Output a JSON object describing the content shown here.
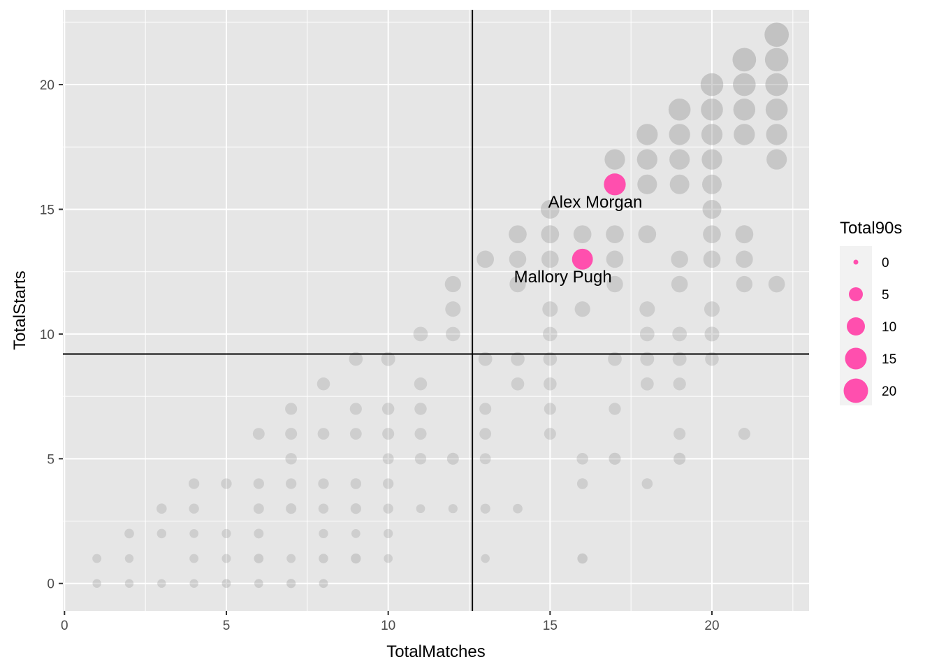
{
  "chart_data": {
    "type": "scatter",
    "xlabel": "TotalMatches",
    "ylabel": "TotalStarts",
    "xlim": [
      -0.05,
      23
    ],
    "ylim": [
      -1.1,
      23
    ],
    "x_ticks": [
      0,
      5,
      10,
      15,
      20
    ],
    "y_ticks": [
      0,
      5,
      10,
      15,
      20
    ],
    "x_tick_labels": [
      "0",
      "5",
      "10",
      "15",
      "20"
    ],
    "y_tick_labels": [
      "0",
      "5",
      "10",
      "15",
      "20"
    ],
    "grid": true,
    "reference_lines": {
      "x": 12.6,
      "y": 9.2
    },
    "legend": {
      "title": "Total90s",
      "position": "right",
      "entries": [
        {
          "label": "0",
          "value": 0
        },
        {
          "label": "5",
          "value": 5
        },
        {
          "label": "10",
          "value": 10
        },
        {
          "label": "15",
          "value": 15
        },
        {
          "label": "20",
          "value": 20
        }
      ]
    },
    "colors": {
      "highlight": "#ff4fae",
      "background_points": "#999999",
      "panel": "#e6e6e6",
      "grid": "#ffffff",
      "ref_line": "#000000"
    },
    "highlighted": [
      {
        "name": "Alex Morgan",
        "x": 17,
        "y": 16,
        "size": 12
      },
      {
        "name": "Mallory Pugh",
        "x": 16,
        "y": 13,
        "size": 11
      }
    ],
    "points": [
      [
        1,
        0,
        0.3
      ],
      [
        2,
        0,
        0.3
      ],
      [
        3,
        0,
        0.3
      ],
      [
        4,
        0,
        0.3
      ],
      [
        5,
        0,
        0.6
      ],
      [
        6,
        0,
        0.5
      ],
      [
        7,
        0,
        0.8
      ],
      [
        8,
        0,
        0.6
      ],
      [
        1,
        1,
        0.6
      ],
      [
        2,
        1,
        0.3
      ],
      [
        4,
        1,
        0.6
      ],
      [
        5,
        1,
        0.7
      ],
      [
        6,
        1,
        1.2
      ],
      [
        7,
        1,
        0.6
      ],
      [
        8,
        1,
        1.1
      ],
      [
        9,
        1,
        1.6
      ],
      [
        10,
        1,
        0.5
      ],
      [
        13,
        1,
        0.4
      ],
      [
        16,
        1,
        1.8
      ],
      [
        2,
        2,
        1.2
      ],
      [
        3,
        2,
        1.0
      ],
      [
        4,
        2,
        0.5
      ],
      [
        5,
        2,
        0.9
      ],
      [
        6,
        2,
        1.3
      ],
      [
        8,
        2,
        0.9
      ],
      [
        9,
        2,
        0.5
      ],
      [
        10,
        2,
        0.9
      ],
      [
        3,
        3,
        1.8
      ],
      [
        4,
        3,
        1.6
      ],
      [
        6,
        3,
        2.0
      ],
      [
        7,
        3,
        2.1
      ],
      [
        8,
        3,
        1.7
      ],
      [
        9,
        3,
        2.2
      ],
      [
        10,
        3,
        1.7
      ],
      [
        11,
        3,
        0.5
      ],
      [
        12,
        3,
        0.8
      ],
      [
        13,
        3,
        1.5
      ],
      [
        14,
        3,
        1.2
      ],
      [
        4,
        4,
        2.3
      ],
      [
        5,
        4,
        2.3
      ],
      [
        6,
        4,
        2.3
      ],
      [
        7,
        4,
        2.3
      ],
      [
        8,
        4,
        2.3
      ],
      [
        9,
        4,
        2.4
      ],
      [
        10,
        4,
        2.3
      ],
      [
        16,
        4,
        2.4
      ],
      [
        18,
        4,
        2.5
      ],
      [
        7,
        5,
        3.1
      ],
      [
        10,
        5,
        2.7
      ],
      [
        11,
        5,
        3.0
      ],
      [
        12,
        5,
        3.5
      ],
      [
        13,
        5,
        2.7
      ],
      [
        16,
        5,
        3.2
      ],
      [
        17,
        5,
        3.6
      ],
      [
        19,
        5,
        3.6
      ],
      [
        6,
        6,
        3.4
      ],
      [
        7,
        6,
        3.5
      ],
      [
        8,
        6,
        3.3
      ],
      [
        9,
        6,
        3.3
      ],
      [
        10,
        6,
        3.5
      ],
      [
        11,
        6,
        3.5
      ],
      [
        13,
        6,
        3.3
      ],
      [
        15,
        6,
        3.5
      ],
      [
        19,
        6,
        3.6
      ],
      [
        21,
        6,
        3.6
      ],
      [
        7,
        7,
        3.6
      ],
      [
        9,
        7,
        3.6
      ],
      [
        10,
        7,
        3.8
      ],
      [
        11,
        7,
        3.8
      ],
      [
        13,
        7,
        3.6
      ],
      [
        15,
        7,
        3.6
      ],
      [
        17,
        7,
        3.7
      ],
      [
        8,
        8,
        4.5
      ],
      [
        11,
        8,
        4.5
      ],
      [
        14,
        8,
        4.6
      ],
      [
        15,
        8,
        4.6
      ],
      [
        18,
        8,
        4.7
      ],
      [
        19,
        8,
        4.4
      ],
      [
        9,
        9,
        5.3
      ],
      [
        10,
        9,
        5.6
      ],
      [
        13,
        9,
        5.4
      ],
      [
        14,
        9,
        5.4
      ],
      [
        15,
        9,
        5.3
      ],
      [
        17,
        9,
        5.4
      ],
      [
        18,
        9,
        5.5
      ],
      [
        19,
        9,
        5.5
      ],
      [
        20,
        9,
        5.3
      ],
      [
        11,
        10,
        6.1
      ],
      [
        12,
        10,
        6.0
      ],
      [
        15,
        10,
        6.0
      ],
      [
        18,
        10,
        6.1
      ],
      [
        19,
        10,
        6.1
      ],
      [
        20,
        10,
        6.3
      ],
      [
        12,
        11,
        7.0
      ],
      [
        15,
        11,
        7.0
      ],
      [
        16,
        11,
        7.1
      ],
      [
        18,
        11,
        7.0
      ],
      [
        20,
        11,
        7.0
      ],
      [
        12,
        12,
        7.8
      ],
      [
        14,
        12,
        7.9
      ],
      [
        17,
        12,
        8.0
      ],
      [
        19,
        12,
        8.1
      ],
      [
        21,
        12,
        7.9
      ],
      [
        22,
        12,
        8.1
      ],
      [
        13,
        13,
        8.8
      ],
      [
        14,
        13,
        8.7
      ],
      [
        15,
        13,
        8.8
      ],
      [
        17,
        13,
        8.8
      ],
      [
        19,
        13,
        8.7
      ],
      [
        20,
        13,
        8.8
      ],
      [
        21,
        13,
        8.8
      ],
      [
        14,
        14,
        9.5
      ],
      [
        15,
        14,
        9.6
      ],
      [
        16,
        14,
        9.5
      ],
      [
        17,
        14,
        9.5
      ],
      [
        18,
        14,
        9.5
      ],
      [
        20,
        14,
        9.5
      ],
      [
        21,
        14,
        9.6
      ],
      [
        15,
        15,
        10.3
      ],
      [
        20,
        15,
        10.4
      ],
      [
        18,
        16,
        11.2
      ],
      [
        19,
        16,
        11.1
      ],
      [
        20,
        16,
        11.1
      ],
      [
        17,
        17,
        12.0
      ],
      [
        18,
        17,
        12.0
      ],
      [
        19,
        17,
        11.9
      ],
      [
        20,
        17,
        12.0
      ],
      [
        22,
        17,
        11.9
      ],
      [
        18,
        18,
        12.7
      ],
      [
        19,
        18,
        12.7
      ],
      [
        20,
        18,
        12.7
      ],
      [
        21,
        18,
        12.7
      ],
      [
        22,
        18,
        12.7
      ],
      [
        19,
        19,
        13.6
      ],
      [
        20,
        19,
        13.6
      ],
      [
        21,
        19,
        13.5
      ],
      [
        22,
        19,
        13.6
      ],
      [
        20,
        20,
        14.3
      ],
      [
        21,
        20,
        14.3
      ],
      [
        22,
        20,
        14.3
      ],
      [
        21,
        21,
        15.1
      ],
      [
        22,
        21,
        15.0
      ],
      [
        22,
        22,
        15.8
      ]
    ]
  }
}
